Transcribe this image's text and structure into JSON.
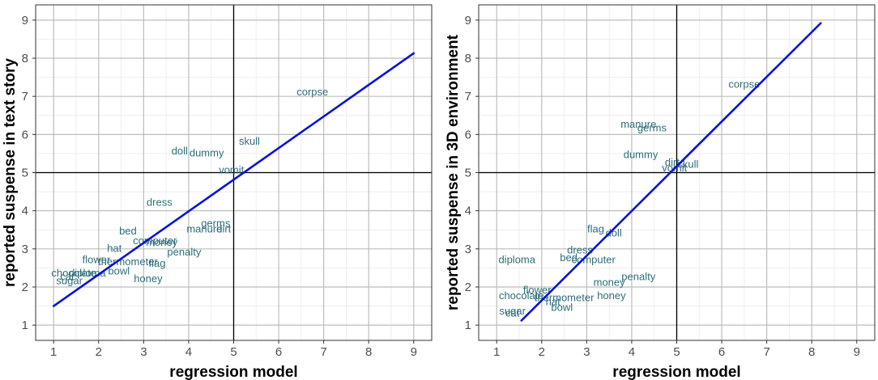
{
  "colors": {
    "panel_bg": "#ffffff",
    "grid_major": "#bdbdbd",
    "grid_minor": "#eeeeee",
    "reference_line": "#000000",
    "fit_line": "#0a13d6",
    "word_label": "#2e6e78"
  },
  "chart_data": [
    {
      "type": "scatter",
      "xlabel": "regression model",
      "ylabel": "reported suspense in text story",
      "xlim": [
        0.6,
        9.4
      ],
      "ylim": [
        0.6,
        9.4
      ],
      "x_ticks": [
        1,
        2,
        3,
        4,
        5,
        6,
        7,
        8,
        9
      ],
      "y_ticks": [
        1,
        2,
        3,
        4,
        5,
        6,
        7,
        8,
        9
      ],
      "grid": true,
      "reference_lines": {
        "x": 5,
        "y": 5
      },
      "fit_line": {
        "x": [
          1.0,
          9.0
        ],
        "y": [
          1.5,
          8.13
        ]
      },
      "points": [
        {
          "label": "corpse",
          "x": 6.75,
          "y": 7.1
        },
        {
          "label": "skull",
          "x": 5.35,
          "y": 5.8
        },
        {
          "label": "doll",
          "x": 3.8,
          "y": 5.55
        },
        {
          "label": "dummy",
          "x": 4.4,
          "y": 5.5
        },
        {
          "label": "vomit",
          "x": 4.95,
          "y": 5.05
        },
        {
          "label": "dress",
          "x": 3.35,
          "y": 4.2
        },
        {
          "label": "germs",
          "x": 4.6,
          "y": 3.65
        },
        {
          "label": "manure",
          "x": 4.35,
          "y": 3.5
        },
        {
          "label": "dirt",
          "x": 4.78,
          "y": 3.5
        },
        {
          "label": "bed",
          "x": 2.65,
          "y": 3.45
        },
        {
          "label": "computer",
          "x": 3.25,
          "y": 3.2
        },
        {
          "label": "money",
          "x": 3.4,
          "y": 3.15
        },
        {
          "label": "hat",
          "x": 2.35,
          "y": 3.0
        },
        {
          "label": "penalty",
          "x": 3.9,
          "y": 2.9
        },
        {
          "label": "flower",
          "x": 1.95,
          "y": 2.7
        },
        {
          "label": "thermometer",
          "x": 2.65,
          "y": 2.65
        },
        {
          "label": "flag",
          "x": 3.3,
          "y": 2.6
        },
        {
          "label": "chocolate",
          "x": 1.45,
          "y": 2.35
        },
        {
          "label": "diploma",
          "x": 1.75,
          "y": 2.35
        },
        {
          "label": "bowl",
          "x": 2.45,
          "y": 2.4
        },
        {
          "label": "cat",
          "x": 1.3,
          "y": 2.25
        },
        {
          "label": "sugar",
          "x": 1.35,
          "y": 2.15
        },
        {
          "label": "honey",
          "x": 3.1,
          "y": 2.2
        }
      ]
    },
    {
      "type": "scatter",
      "xlabel": "regression model",
      "ylabel": "reported suspense in 3D environment",
      "xlim": [
        0.6,
        9.4
      ],
      "ylim": [
        0.6,
        9.4
      ],
      "x_ticks": [
        1,
        2,
        3,
        4,
        5,
        6,
        7,
        8,
        9
      ],
      "y_ticks": [
        1,
        2,
        3,
        4,
        5,
        6,
        7,
        8,
        9
      ],
      "grid": true,
      "reference_lines": {
        "x": 5,
        "y": 5
      },
      "fit_line": {
        "x": [
          1.55,
          8.2
        ],
        "y": [
          1.12,
          8.92
        ]
      },
      "points": [
        {
          "label": "corpse",
          "x": 6.5,
          "y": 7.3
        },
        {
          "label": "manure",
          "x": 4.15,
          "y": 6.25
        },
        {
          "label": "germs",
          "x": 4.45,
          "y": 6.15
        },
        {
          "label": "dummy",
          "x": 4.2,
          "y": 5.45
        },
        {
          "label": "dirt",
          "x": 4.9,
          "y": 5.25
        },
        {
          "label": "skull",
          "x": 5.25,
          "y": 5.2
        },
        {
          "label": "vomit",
          "x": 4.95,
          "y": 5.1
        },
        {
          "label": "flag",
          "x": 3.2,
          "y": 3.5
        },
        {
          "label": "doll",
          "x": 3.6,
          "y": 3.4
        },
        {
          "label": "dress",
          "x": 2.85,
          "y": 2.95
        },
        {
          "label": "diploma",
          "x": 1.45,
          "y": 2.7
        },
        {
          "label": "bed",
          "x": 2.6,
          "y": 2.75
        },
        {
          "label": "computer",
          "x": 3.15,
          "y": 2.7
        },
        {
          "label": "penalty",
          "x": 4.15,
          "y": 2.25
        },
        {
          "label": "money",
          "x": 3.5,
          "y": 2.1
        },
        {
          "label": "flower",
          "x": 1.9,
          "y": 1.9
        },
        {
          "label": "chocolate",
          "x": 1.55,
          "y": 1.75
        },
        {
          "label": "thermometer",
          "x": 2.5,
          "y": 1.7
        },
        {
          "label": "honey",
          "x": 3.55,
          "y": 1.75
        },
        {
          "label": "hat",
          "x": 2.25,
          "y": 1.6
        },
        {
          "label": "bowl",
          "x": 2.45,
          "y": 1.45
        },
        {
          "label": "sugar",
          "x": 1.35,
          "y": 1.35
        },
        {
          "label": "cat",
          "x": 1.35,
          "y": 1.3
        }
      ]
    }
  ]
}
